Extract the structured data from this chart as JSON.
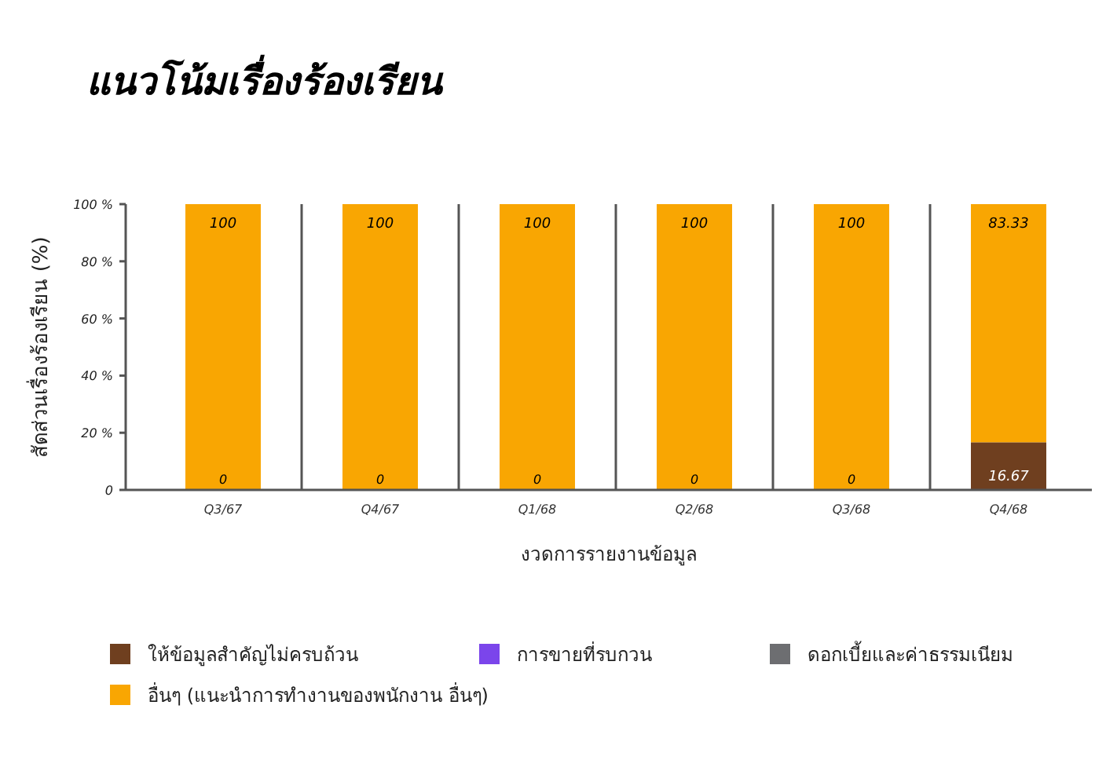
{
  "chart_data": {
    "type": "bar",
    "title": "แนวโน้มเรื่องร้องเรียน",
    "xlabel": "งวดการรายงานข้อมูล",
    "ylabel": "สัดส่วนเรื่องร้องเรียน (%)",
    "categories": [
      "Q3/67",
      "Q4/67",
      "Q1/68",
      "Q2/68",
      "Q3/68",
      "Q4/68"
    ],
    "stacked": true,
    "ylim": [
      0,
      100
    ],
    "yticks": [
      0,
      {
        "value": 20,
        "label": "20 %"
      },
      {
        "value": 40,
        "label": "40 %"
      },
      {
        "value": 60,
        "label": "60 %"
      },
      {
        "value": 80,
        "label": "80 %"
      },
      {
        "value": 100,
        "label": "100 %"
      }
    ],
    "grid": "x",
    "legend": "bottom",
    "series": [
      {
        "name": "ให้ข้อมูลสำคัญไม่ครบถ้วน",
        "color": "#6f3f1f",
        "values": [
          0,
          0,
          0,
          0,
          0,
          16.67
        ],
        "value_labels": [
          "0",
          "0",
          "0",
          "0",
          "0",
          "16.67"
        ]
      },
      {
        "name": "การขายที่รบกวน",
        "color": "#7b45eb",
        "values": [
          0,
          0,
          0,
          0,
          0,
          0
        ]
      },
      {
        "name": "ดอกเบี้ยและค่าธรรมเนียม",
        "color": "#6d6e71",
        "values": [
          0,
          0,
          0,
          0,
          0,
          0
        ]
      },
      {
        "name": "อื่นๆ (แนะนำการทำงานของพนักงาน อื่นๆ)",
        "color": "#f9a602",
        "values": [
          100,
          100,
          100,
          100,
          100,
          83.33
        ],
        "value_labels": [
          "100",
          "100",
          "100",
          "100",
          "100",
          "83.33"
        ]
      }
    ]
  }
}
